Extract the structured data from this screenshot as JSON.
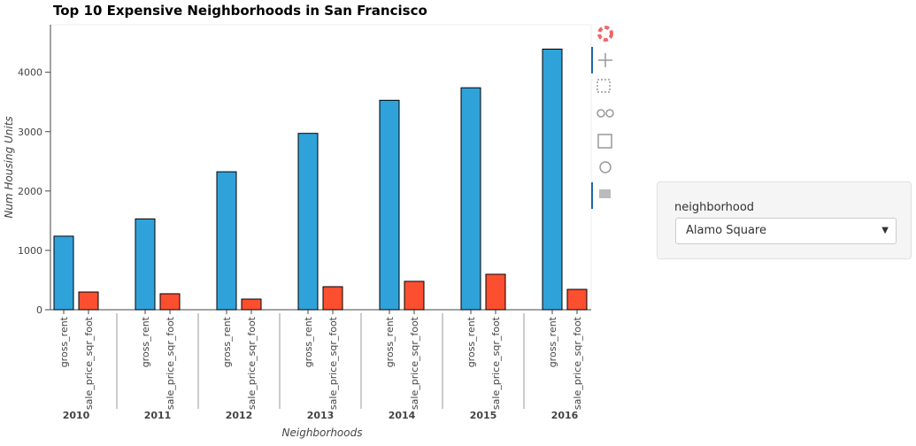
{
  "chart_data": {
    "type": "bar",
    "title": "Top 10 Expensive Neighborhoods in San Francisco",
    "x_label": "Neighborhoods",
    "y_label": "Num Housing Units",
    "categories": [
      "2010",
      "2011",
      "2012",
      "2013",
      "2014",
      "2015",
      "2016"
    ],
    "series": [
      {
        "name": "gross_rent",
        "color": "#30a2da",
        "values": [
          1239,
          1530,
          2324,
          2971,
          3528,
          3739,
          4390
        ]
      },
      {
        "name": "sale_price_sqr_foot",
        "color": "#fc4f30",
        "values": [
          298,
          269,
          179,
          388,
          478,
          597,
          343
        ]
      }
    ],
    "ylim": [
      0,
      4800
    ],
    "yticks": [
      0,
      1000,
      2000,
      3000,
      4000
    ]
  },
  "widget": {
    "label": "neighborhood",
    "value": "Alamo Square"
  }
}
